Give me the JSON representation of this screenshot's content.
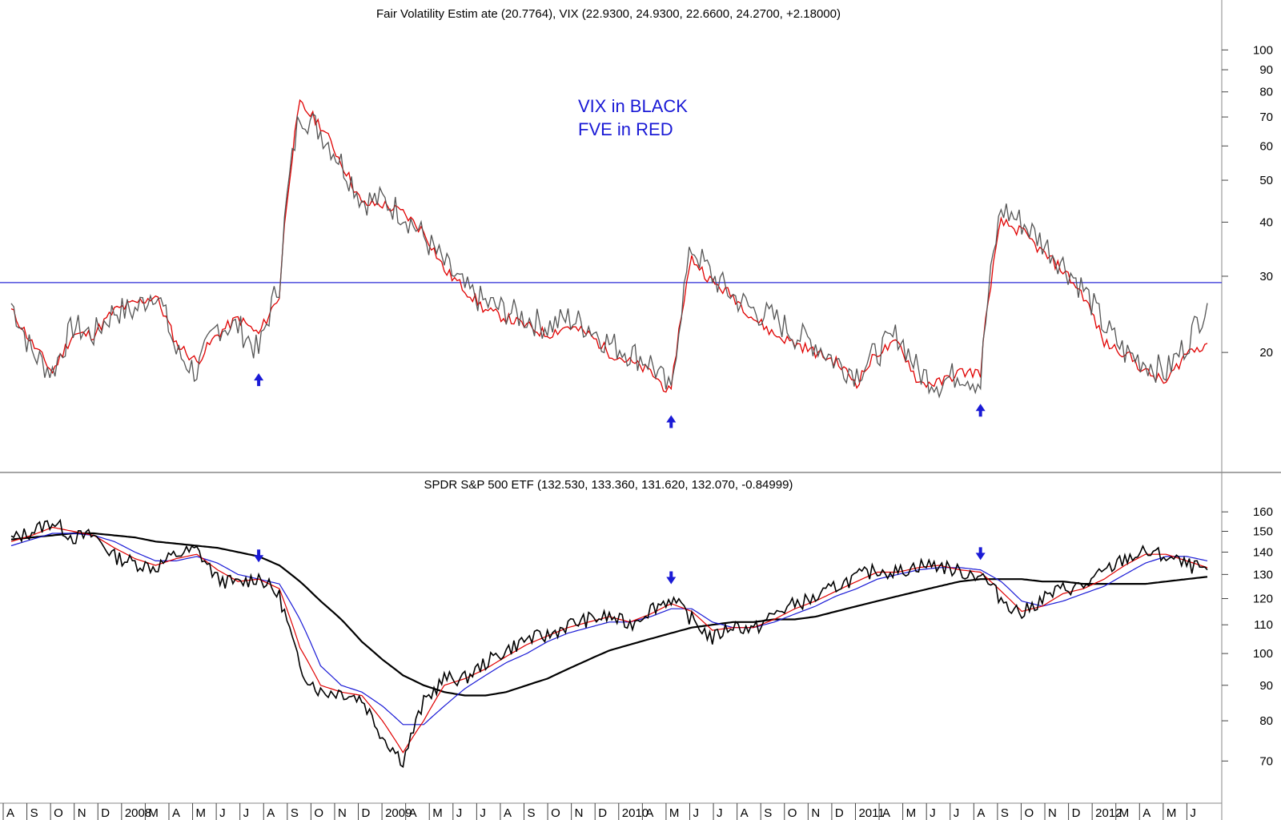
{
  "colors": {
    "vix": "#555555",
    "fve": "#e00000",
    "spy": "#000000",
    "ma_short": "#e00000",
    "ma_mid": "#1a1ad6",
    "ma_long": "#000000",
    "reference_line": "#2a2ad6",
    "arrow": "#1a1ad6",
    "note": "#1a1ad6"
  },
  "chart_data": [
    {
      "type": "line",
      "title": "Fair Volatility Estim ate  (20.7764), VIX (22.9300, 24.9300, 22.6600, 24.2700, +2.18000)",
      "scale": "log",
      "ylim": [
        11.5,
        110
      ],
      "y_ticks": [
        20,
        30,
        40,
        50,
        60,
        70,
        80,
        90,
        100
      ],
      "y_tick_labels": [
        "20",
        "30",
        "40",
        "50",
        "60",
        "70",
        "80",
        "90",
        "100"
      ],
      "reference_line": 29,
      "annotations": [
        "VIX in BLACK",
        "FVE in RED"
      ],
      "buy_arrows": [
        "2008-08",
        "2010-04",
        "2011-07"
      ],
      "x": [
        "2007-08",
        "2007-09",
        "2007-10",
        "2007-11",
        "2007-12",
        "2008-01",
        "2008-02",
        "2008-03",
        "2008-04",
        "2008-05",
        "2008-06",
        "2008-07",
        "2008-08",
        "2008-09",
        "2008-10",
        "2008-11",
        "2008-12",
        "2009-01",
        "2009-02",
        "2009-03",
        "2009-04",
        "2009-05",
        "2009-06",
        "2009-07",
        "2009-08",
        "2009-09",
        "2009-10",
        "2009-11",
        "2009-12",
        "2010-01",
        "2010-02",
        "2010-03",
        "2010-04",
        "2010-05",
        "2010-06",
        "2010-07",
        "2010-08",
        "2010-09",
        "2010-10",
        "2010-11",
        "2010-12",
        "2011-01",
        "2011-02",
        "2011-03",
        "2011-04",
        "2011-05",
        "2011-06",
        "2011-07",
        "2011-08",
        "2011-09",
        "2011-10",
        "2011-11",
        "2011-12",
        "2012-01",
        "2012-02",
        "2012-03",
        "2012-04",
        "2012-05",
        "2012-06"
      ],
      "series": [
        {
          "name": "VIX",
          "values": [
            26,
            20,
            18,
            23,
            22,
            25,
            25,
            28,
            20,
            18,
            23,
            23,
            20,
            29,
            72,
            65,
            55,
            45,
            45,
            42,
            37,
            32,
            28,
            26,
            25,
            24,
            23,
            24,
            23,
            21,
            20,
            19,
            16,
            35,
            30,
            27,
            25,
            24,
            22,
            21,
            19,
            18,
            20,
            22,
            18,
            17,
            18,
            17,
            43,
            40,
            36,
            32,
            28,
            23,
            20,
            19,
            18,
            21,
            26
          ]
        },
        {
          "name": "FVE",
          "values": [
            25,
            21,
            18,
            22,
            22,
            25,
            26,
            27,
            21,
            19,
            22,
            24,
            22,
            27,
            75,
            67,
            55,
            44,
            44,
            42,
            38,
            31,
            28,
            25,
            24,
            23,
            22,
            23,
            22,
            20,
            19,
            18,
            16,
            33,
            29,
            27,
            24,
            22,
            21,
            20,
            19,
            17,
            20,
            21,
            17,
            17,
            18,
            18,
            40,
            38,
            34,
            31,
            27,
            21,
            20,
            18,
            17,
            20,
            21
          ]
        }
      ]
    },
    {
      "type": "line",
      "title": "SPDR S&P 500 ETF (132.530, 133.360, 131.620, 132.070, -0.84999)",
      "scale": "log",
      "ylim": [
        63,
        172
      ],
      "y_ticks": [
        70,
        80,
        90,
        100,
        110,
        120,
        130,
        140,
        150,
        160
      ],
      "y_tick_labels": [
        "70",
        "80",
        "90",
        "100",
        "110",
        "120",
        "130",
        "140",
        "150",
        "160"
      ],
      "sell_arrows": [
        "2008-08",
        "2010-04",
        "2011-07"
      ],
      "x_axis_labels": [
        "A",
        "S",
        "O",
        "N",
        "D",
        "2008",
        "M",
        "A",
        "M",
        "J",
        "J",
        "A",
        "S",
        "O",
        "N",
        "D",
        "2009",
        "A",
        "M",
        "J",
        "J",
        "A",
        "S",
        "O",
        "N",
        "D",
        "2010",
        "A",
        "M",
        "J",
        "J",
        "A",
        "S",
        "O",
        "N",
        "D",
        "2011",
        "A",
        "M",
        "J",
        "J",
        "A",
        "S",
        "O",
        "N",
        "D",
        "2012",
        "M",
        "A",
        "M",
        "J"
      ],
      "x": [
        "2007-08",
        "2007-09",
        "2007-10",
        "2007-11",
        "2007-12",
        "2008-01",
        "2008-02",
        "2008-03",
        "2008-04",
        "2008-05",
        "2008-06",
        "2008-07",
        "2008-08",
        "2008-09",
        "2008-10",
        "2008-11",
        "2008-12",
        "2009-01",
        "2009-02",
        "2009-03",
        "2009-04",
        "2009-05",
        "2009-06",
        "2009-07",
        "2009-08",
        "2009-09",
        "2009-10",
        "2009-11",
        "2009-12",
        "2010-01",
        "2010-02",
        "2010-03",
        "2010-04",
        "2010-05",
        "2010-06",
        "2010-07",
        "2010-08",
        "2010-09",
        "2010-10",
        "2010-11",
        "2010-12",
        "2011-01",
        "2011-02",
        "2011-03",
        "2011-04",
        "2011-05",
        "2011-06",
        "2011-07",
        "2011-08",
        "2011-09",
        "2011-10",
        "2011-11",
        "2011-12",
        "2012-01",
        "2012-02",
        "2012-03",
        "2012-04",
        "2012-05",
        "2012-06"
      ],
      "series": [
        {
          "name": "SPDR S&P 500 ETF",
          "values": [
            146,
            150,
            155,
            147,
            148,
            138,
            135,
            133,
            139,
            141,
            128,
            126,
            129,
            121,
            95,
            88,
            88,
            86,
            76,
            70,
            85,
            92,
            92,
            97,
            101,
            105,
            106,
            110,
            112,
            113,
            110,
            116,
            120,
            112,
            105,
            110,
            108,
            114,
            118,
            120,
            125,
            129,
            132,
            131,
            134,
            134,
            131,
            130,
            120,
            114,
            120,
            124,
            125,
            131,
            137,
            140,
            138,
            134,
            132
          ]
        },
        {
          "name": "",
          "values": [
            145,
            148,
            152,
            150,
            148,
            142,
            137,
            134,
            137,
            139,
            132,
            127,
            128,
            124,
            102,
            90,
            88,
            87,
            80,
            72,
            80,
            90,
            92,
            95,
            99,
            103,
            106,
            109,
            111,
            113,
            111,
            114,
            118,
            115,
            108,
            109,
            109,
            112,
            116,
            119,
            123,
            127,
            131,
            131,
            133,
            134,
            132,
            131,
            123,
            115,
            117,
            122,
            124,
            128,
            134,
            139,
            139,
            136,
            133
          ]
        },
        {
          "name": "",
          "values": [
            143,
            146,
            149,
            149,
            148,
            145,
            140,
            136,
            136,
            138,
            135,
            130,
            128,
            126,
            112,
            96,
            90,
            88,
            84,
            79,
            79,
            84,
            89,
            93,
            97,
            100,
            104,
            107,
            109,
            111,
            111,
            113,
            116,
            116,
            111,
            109,
            109,
            111,
            114,
            117,
            121,
            124,
            128,
            130,
            132,
            133,
            133,
            132,
            127,
            119,
            117,
            119,
            122,
            125,
            130,
            135,
            138,
            138,
            136
          ]
        },
        {
          "name": "",
          "values": [
            146,
            147,
            148,
            149,
            149,
            148,
            147,
            145,
            144,
            143,
            142,
            140,
            138,
            134,
            127,
            119,
            112,
            104,
            98,
            93,
            90,
            88,
            87,
            87,
            88,
            90,
            92,
            95,
            98,
            101,
            103,
            105,
            107,
            109,
            110,
            111,
            111,
            112,
            112,
            113,
            115,
            117,
            119,
            121,
            123,
            125,
            127,
            128,
            128,
            128,
            127,
            127,
            126,
            126,
            126,
            126,
            127,
            128,
            129
          ]
        }
      ]
    }
  ]
}
